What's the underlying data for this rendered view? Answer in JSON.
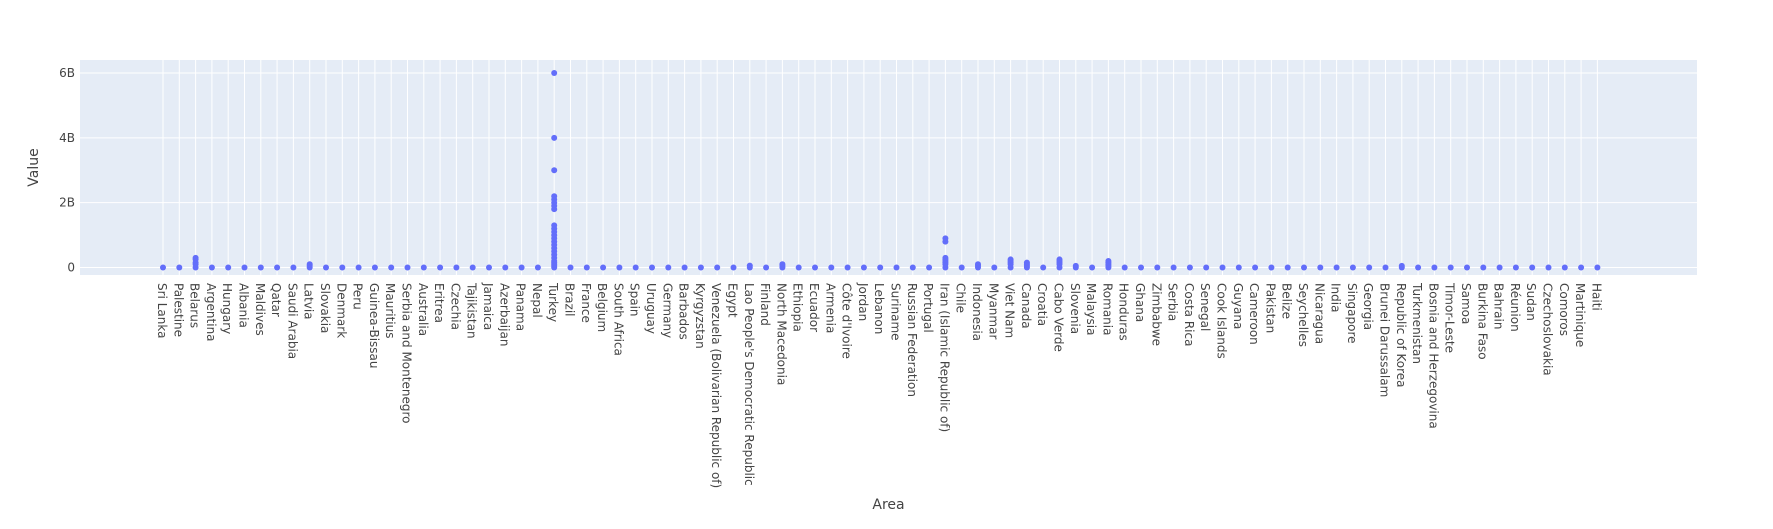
{
  "colors": {
    "plot_bg": "#e5ecf6",
    "grid": "#ffffff",
    "marker": "#636efa",
    "text": "#444444"
  },
  "chart_data": {
    "type": "scatter",
    "xlabel": "Area",
    "ylabel": "Value",
    "grid": true,
    "legend": "none",
    "ylim": [
      -230000000,
      6400000000
    ],
    "yticks": [
      {
        "value": 0,
        "label": "0"
      },
      {
        "value": 2000000000,
        "label": "2B"
      },
      {
        "value": 4000000000,
        "label": "4B"
      },
      {
        "value": 6000000000,
        "label": "6B"
      }
    ],
    "categories": [
      "Sri Lanka",
      "Palestine",
      "Belarus",
      "Argentina",
      "Hungary",
      "Albania",
      "Maldives",
      "Qatar",
      "Saudi Arabia",
      "Latvia",
      "Slovakia",
      "Denmark",
      "Peru",
      "Guinea-Bissau",
      "Mauritius",
      "Serbia and Montenegro",
      "Australia",
      "Eritrea",
      "Czechia",
      "Tajikistan",
      "Jamaica",
      "Azerbaijan",
      "Panama",
      "Nepal",
      "Turkey",
      "Brazil",
      "France",
      "Belgium",
      "South Africa",
      "Spain",
      "Uruguay",
      "Germany",
      "Barbados",
      "Kyrgyzstan",
      "Venezuela (Bolivarian Republic of)",
      "Egypt",
      "Lao People's Democratic Republic",
      "Finland",
      "North Macedonia",
      "Ethiopia",
      "Ecuador",
      "Armenia",
      "Côte d'Ivoire",
      "Jordan",
      "Lebanon",
      "Suriname",
      "Russian Federation",
      "Portugal",
      "Iran (Islamic Republic of)",
      "Chile",
      "Indonesia",
      "Myanmar",
      "Viet Nam",
      "Canada",
      "Croatia",
      "Cabo Verde",
      "Slovenia",
      "Malaysia",
      "Romania",
      "Honduras",
      "Ghana",
      "Zimbabwe",
      "Serbia",
      "Costa Rica",
      "Senegal",
      "Cook Islands",
      "Guyana",
      "Cameroon",
      "Pakistan",
      "Belize",
      "Seychelles",
      "Nicaragua",
      "India",
      "Singapore",
      "Georgia",
      "Brunei Darussalam",
      "Republic of Korea",
      "Turkmenistan",
      "Bosnia and Herzegovina",
      "Timor-Leste",
      "Samoa",
      "Burkina Faso",
      "Bahrain",
      "Réunion",
      "Sudan",
      "Czechoslovakia",
      "Comoros",
      "Martinique",
      "Haiti"
    ],
    "points": [
      {
        "x": "Sri Lanka",
        "y": [
          0
        ]
      },
      {
        "x": "Palestine",
        "y": [
          0
        ]
      },
      {
        "x": "Belarus",
        "y": [
          0,
          100000000,
          150000000,
          250000000,
          300000000
        ]
      },
      {
        "x": "Argentina",
        "y": [
          0
        ]
      },
      {
        "x": "Hungary",
        "y": [
          0
        ]
      },
      {
        "x": "Albania",
        "y": [
          0
        ]
      },
      {
        "x": "Maldives",
        "y": [
          0
        ]
      },
      {
        "x": "Qatar",
        "y": [
          0
        ]
      },
      {
        "x": "Saudi Arabia",
        "y": [
          0
        ]
      },
      {
        "x": "Latvia",
        "y": [
          0,
          50000000,
          100000000
        ]
      },
      {
        "x": "Slovakia",
        "y": [
          0
        ]
      },
      {
        "x": "Denmark",
        "y": [
          0
        ]
      },
      {
        "x": "Peru",
        "y": [
          0
        ]
      },
      {
        "x": "Guinea-Bissau",
        "y": [
          0
        ]
      },
      {
        "x": "Mauritius",
        "y": [
          0
        ]
      },
      {
        "x": "Serbia and Montenegro",
        "y": [
          0
        ]
      },
      {
        "x": "Australia",
        "y": [
          0
        ]
      },
      {
        "x": "Eritrea",
        "y": [
          0
        ]
      },
      {
        "x": "Czechia",
        "y": [
          0
        ]
      },
      {
        "x": "Tajikistan",
        "y": [
          0
        ]
      },
      {
        "x": "Jamaica",
        "y": [
          0
        ]
      },
      {
        "x": "Azerbaijan",
        "y": [
          0
        ]
      },
      {
        "x": "Panama",
        "y": [
          0
        ]
      },
      {
        "x": "Nepal",
        "y": [
          0
        ]
      },
      {
        "x": "Turkey",
        "y": [
          0,
          50000000,
          100000000,
          150000000,
          200000000,
          300000000,
          400000000,
          500000000,
          600000000,
          700000000,
          800000000,
          900000000,
          1000000000,
          1100000000,
          1200000000,
          1300000000,
          1800000000,
          1900000000,
          2000000000,
          2100000000,
          2200000000,
          3000000000,
          4000000000,
          6000000000
        ]
      },
      {
        "x": "Brazil",
        "y": [
          0
        ]
      },
      {
        "x": "France",
        "y": [
          0
        ]
      },
      {
        "x": "Belgium",
        "y": [
          0
        ]
      },
      {
        "x": "South Africa",
        "y": [
          0
        ]
      },
      {
        "x": "Spain",
        "y": [
          0
        ]
      },
      {
        "x": "Uruguay",
        "y": [
          0
        ]
      },
      {
        "x": "Germany",
        "y": [
          0
        ]
      },
      {
        "x": "Barbados",
        "y": [
          0
        ]
      },
      {
        "x": "Kyrgyzstan",
        "y": [
          0
        ]
      },
      {
        "x": "Venezuela (Bolivarian Republic of)",
        "y": [
          0
        ]
      },
      {
        "x": "Egypt",
        "y": [
          0
        ]
      },
      {
        "x": "Lao People's Democratic Republic",
        "y": [
          0,
          60000000
        ]
      },
      {
        "x": "Finland",
        "y": [
          0
        ]
      },
      {
        "x": "North Macedonia",
        "y": [
          0,
          50000000,
          100000000
        ]
      },
      {
        "x": "Ethiopia",
        "y": [
          0
        ]
      },
      {
        "x": "Ecuador",
        "y": [
          0
        ]
      },
      {
        "x": "Armenia",
        "y": [
          0
        ]
      },
      {
        "x": "Côte d'Ivoire",
        "y": [
          0
        ]
      },
      {
        "x": "Jordan",
        "y": [
          0
        ]
      },
      {
        "x": "Lebanon",
        "y": [
          0
        ]
      },
      {
        "x": "Suriname",
        "y": [
          0
        ]
      },
      {
        "x": "Russian Federation",
        "y": [
          0
        ]
      },
      {
        "x": "Portugal",
        "y": [
          0
        ]
      },
      {
        "x": "Iran (Islamic Republic of)",
        "y": [
          0,
          100000000,
          150000000,
          200000000,
          250000000,
          300000000,
          800000000,
          900000000
        ]
      },
      {
        "x": "Chile",
        "y": [
          0
        ]
      },
      {
        "x": "Indonesia",
        "y": [
          0,
          50000000,
          100000000
        ]
      },
      {
        "x": "Myanmar",
        "y": [
          0
        ]
      },
      {
        "x": "Viet Nam",
        "y": [
          0,
          100000000,
          150000000,
          200000000,
          250000000
        ]
      },
      {
        "x": "Canada",
        "y": [
          0,
          50000000,
          100000000,
          150000000
        ]
      },
      {
        "x": "Croatia",
        "y": [
          0
        ]
      },
      {
        "x": "Cabo Verde",
        "y": [
          0,
          100000000,
          150000000,
          200000000,
          250000000
        ]
      },
      {
        "x": "Slovenia",
        "y": [
          0,
          50000000
        ]
      },
      {
        "x": "Malaysia",
        "y": [
          0
        ]
      },
      {
        "x": "Romania",
        "y": [
          0,
          50000000,
          100000000,
          150000000,
          200000000
        ]
      },
      {
        "x": "Honduras",
        "y": [
          0
        ]
      },
      {
        "x": "Ghana",
        "y": [
          0
        ]
      },
      {
        "x": "Zimbabwe",
        "y": [
          0
        ]
      },
      {
        "x": "Serbia",
        "y": [
          0
        ]
      },
      {
        "x": "Costa Rica",
        "y": [
          0
        ]
      },
      {
        "x": "Senegal",
        "y": [
          0
        ]
      },
      {
        "x": "Cook Islands",
        "y": [
          0
        ]
      },
      {
        "x": "Guyana",
        "y": [
          0
        ]
      },
      {
        "x": "Cameroon",
        "y": [
          0
        ]
      },
      {
        "x": "Pakistan",
        "y": [
          0
        ]
      },
      {
        "x": "Belize",
        "y": [
          0
        ]
      },
      {
        "x": "Seychelles",
        "y": [
          0
        ]
      },
      {
        "x": "Nicaragua",
        "y": [
          0
        ]
      },
      {
        "x": "India",
        "y": [
          0
        ]
      },
      {
        "x": "Singapore",
        "y": [
          0
        ]
      },
      {
        "x": "Georgia",
        "y": [
          0
        ]
      },
      {
        "x": "Brunei Darussalam",
        "y": [
          0
        ]
      },
      {
        "x": "Republic of Korea",
        "y": [
          0,
          50000000
        ]
      },
      {
        "x": "Turkmenistan",
        "y": [
          0
        ]
      },
      {
        "x": "Bosnia and Herzegovina",
        "y": [
          0
        ]
      },
      {
        "x": "Timor-Leste",
        "y": [
          0
        ]
      },
      {
        "x": "Samoa",
        "y": [
          0
        ]
      },
      {
        "x": "Burkina Faso",
        "y": [
          0
        ]
      },
      {
        "x": "Bahrain",
        "y": [
          0
        ]
      },
      {
        "x": "Réunion",
        "y": [
          0
        ]
      },
      {
        "x": "Sudan",
        "y": [
          0
        ]
      },
      {
        "x": "Czechoslovakia",
        "y": [
          0
        ]
      },
      {
        "x": "Comoros",
        "y": [
          0
        ]
      },
      {
        "x": "Martinique",
        "y": [
          0
        ]
      },
      {
        "x": "Haiti",
        "y": [
          0
        ]
      }
    ]
  }
}
